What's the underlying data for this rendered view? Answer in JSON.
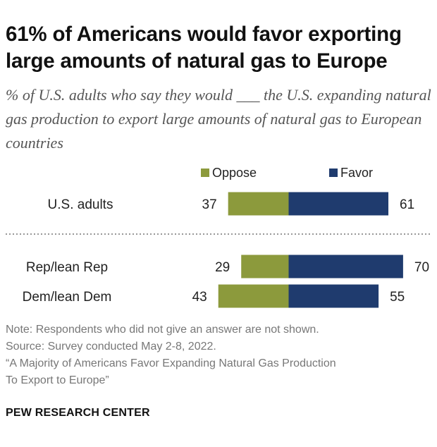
{
  "title": "61% of Americans would favor exporting large amounts of natural gas to Europe",
  "subtitle": "% of U.S. adults who say they would ___ the U.S. expanding natural gas production to export large amounts of natural gas to European countries",
  "chart_data": {
    "type": "bar",
    "orientation": "horizontal-diverging",
    "categories": [
      "U.S. adults",
      "Rep/lean Rep",
      "Dem/lean Dem"
    ],
    "series": [
      {
        "name": "Oppose",
        "values": [
          37,
          29,
          43
        ],
        "color": "#8c9a3c"
      },
      {
        "name": "Favor",
        "values": [
          61,
          70,
          55
        ],
        "color": "#1f3b6e"
      }
    ],
    "legend_position": "top"
  },
  "notes": {
    "note": "Note: Respondents who did not give an answer are not shown.",
    "source": "Source: Survey conducted May 2-8, 2022.",
    "report_line1": "“A Majority of Americans Favor Expanding Natural Gas Production",
    "report_line2": "To Export to Europe”"
  },
  "brand": "PEW RESEARCH CENTER"
}
